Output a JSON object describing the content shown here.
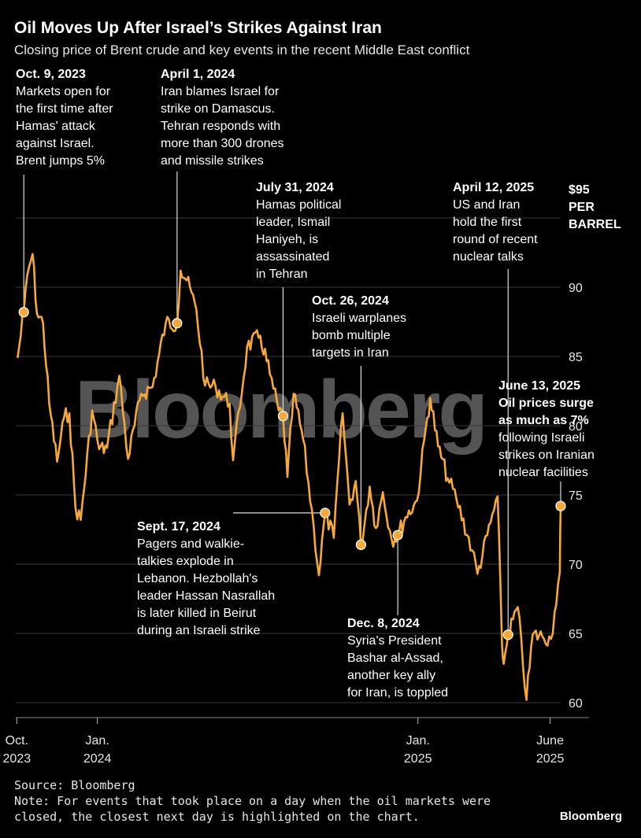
{
  "header": {
    "title": "Oil Moves Up After Israel’s Strikes Against Iran",
    "subtitle": "Closing price of Brent crude and key events in the recent Middle East conflict"
  },
  "watermark": "Bloomberg",
  "footer": {
    "source": "Source: Bloomberg",
    "note_line1": "Note: For events that took place on a day when the oil markets were",
    "note_line2": "closed, the closest next day is highlighted on the chart.",
    "brand": "Bloomberg"
  },
  "colors": {
    "line": "#f4a93a",
    "background": "#000000",
    "grid": "#3a3a3a",
    "marker": "#f4a93a"
  },
  "chart_data": {
    "type": "line",
    "title": "Oil Moves Up After Israel’s Strikes Against Iran",
    "subtitle": "Closing price of Brent crude and key events in the recent Middle East conflict",
    "series": [
      {
        "name": "Brent crude",
        "points": [
          [
            "2023-10-02",
            84.9
          ],
          [
            "2023-10-09",
            88.2
          ],
          [
            "2023-10-13",
            90.9
          ],
          [
            "2023-10-19",
            92.4
          ],
          [
            "2023-10-24",
            88.1
          ],
          [
            "2023-10-31",
            87.4
          ],
          [
            "2023-11-07",
            81.6
          ],
          [
            "2023-11-16",
            77.4
          ],
          [
            "2023-11-24",
            80.6
          ],
          [
            "2023-11-30",
            80.9
          ],
          [
            "2023-12-07",
            74.1
          ],
          [
            "2023-12-13",
            73.2
          ],
          [
            "2023-12-26",
            81.1
          ],
          [
            "2024-01-03",
            78.3
          ],
          [
            "2024-01-12",
            78.4
          ],
          [
            "2024-01-26",
            83.6
          ],
          [
            "2024-02-05",
            77.6
          ],
          [
            "2024-02-20",
            82.3
          ],
          [
            "2024-03-04",
            82.8
          ],
          [
            "2024-03-19",
            87.4
          ],
          [
            "2024-04-01",
            87.4
          ],
          [
            "2024-04-05",
            91.2
          ],
          [
            "2024-04-12",
            90.5
          ],
          [
            "2024-04-23",
            88.4
          ],
          [
            "2024-05-03",
            82.9
          ],
          [
            "2024-05-15",
            82.8
          ],
          [
            "2024-05-31",
            81.6
          ],
          [
            "2024-06-04",
            77.5
          ],
          [
            "2024-06-20",
            85.7
          ],
          [
            "2024-07-05",
            86.5
          ],
          [
            "2024-07-16",
            83.7
          ],
          [
            "2024-07-26",
            81.1
          ],
          [
            "2024-07-31",
            80.7
          ],
          [
            "2024-08-05",
            76.3
          ],
          [
            "2024-08-12",
            82.3
          ],
          [
            "2024-08-23",
            79.0
          ],
          [
            "2024-09-04",
            72.7
          ],
          [
            "2024-09-10",
            69.2
          ],
          [
            "2024-09-17",
            73.7
          ],
          [
            "2024-09-27",
            71.9
          ],
          [
            "2024-10-03",
            77.6
          ],
          [
            "2024-10-07",
            80.9
          ],
          [
            "2024-10-15",
            74.3
          ],
          [
            "2024-10-22",
            76.0
          ],
          [
            "2024-10-28",
            71.4
          ],
          [
            "2024-11-07",
            75.6
          ],
          [
            "2024-11-14",
            72.6
          ],
          [
            "2024-11-22",
            75.2
          ],
          [
            "2024-12-02",
            71.8
          ],
          [
            "2024-12-09",
            72.1
          ],
          [
            "2024-12-18",
            73.4
          ],
          [
            "2024-12-31",
            74.6
          ],
          [
            "2025-01-10",
            79.8
          ],
          [
            "2025-01-15",
            82.0
          ],
          [
            "2025-01-24",
            78.5
          ],
          [
            "2025-02-04",
            76.2
          ],
          [
            "2025-02-14",
            74.7
          ],
          [
            "2025-03-04",
            71.0
          ],
          [
            "2025-03-10",
            69.3
          ],
          [
            "2025-03-25",
            73.0
          ],
          [
            "2025-04-02",
            74.9
          ],
          [
            "2025-04-07",
            64.2
          ],
          [
            "2025-04-09",
            62.8
          ],
          [
            "2025-04-14",
            64.9
          ],
          [
            "2025-04-25",
            66.9
          ],
          [
            "2025-05-05",
            60.2
          ],
          [
            "2025-05-12",
            64.9
          ],
          [
            "2025-05-23",
            64.8
          ],
          [
            "2025-06-02",
            64.6
          ],
          [
            "2025-06-06",
            66.5
          ],
          [
            "2025-06-12",
            69.4
          ],
          [
            "2025-06-13",
            74.2
          ]
        ]
      }
    ],
    "y_axis": {
      "min": 60,
      "max": 95,
      "ticks": [
        60,
        65,
        70,
        75,
        80,
        85,
        90,
        95
      ],
      "unit_label": [
        "$95",
        "PER",
        "BARREL"
      ]
    },
    "x_axis": {
      "range": [
        "2023-09-28",
        "2025-07-10"
      ],
      "ticks": [
        {
          "date": "2023-10-01",
          "line1": "Oct.",
          "line2": "2023"
        },
        {
          "date": "2024-01-01",
          "line1": "Jan.",
          "line2": "2024"
        },
        {
          "date": "2025-01-01",
          "line1": "Jan.",
          "line2": "2025"
        },
        {
          "date": "2025-06-01",
          "line1": "June",
          "line2": "2025"
        }
      ]
    },
    "grid": true,
    "events": [
      {
        "date": "2023-10-09",
        "price": 88.2,
        "label": "Oct. 9, 2023",
        "lines": [
          "Markets open for",
          "the first time after",
          "Hamas' attack",
          "against Israel.",
          "Brent jumps 5%"
        ],
        "bold_lines": 0
      },
      {
        "date": "2024-04-01",
        "price": 87.4,
        "label": "April 1, 2024",
        "lines": [
          "Iran blames Israel for",
          "strike on Damascus.",
          "Tehran responds with",
          "more than 300 drones",
          "and missile strikes"
        ],
        "bold_lines": 0
      },
      {
        "date": "2024-07-31",
        "price": 80.7,
        "label": "July 31, 2024",
        "lines": [
          "Hamas political",
          "leader, Ismail",
          "Haniyeh, is",
          "assassinated",
          "in Tehran"
        ],
        "bold_lines": 0
      },
      {
        "date": "2024-09-17",
        "price": 73.7,
        "label": "Sept. 17, 2024",
        "lines": [
          "Pagers and walkie-",
          "talkies explode in",
          "Lebanon. Hezbollah's",
          "leader Hassan Nasrallah",
          "is later killed in Beirut",
          "during an Israeli strike"
        ],
        "bold_lines": 0
      },
      {
        "date": "2024-10-28",
        "price": 71.4,
        "label": "Oct. 26, 2024",
        "lines": [
          "Israeli warplanes",
          "bomb multiple",
          "targets in Iran"
        ],
        "bold_lines": 0
      },
      {
        "date": "2024-12-09",
        "price": 72.1,
        "label": "Dec. 8, 2024",
        "lines": [
          "Syria's President",
          "Bashar al-Assad,",
          "another key ally",
          "for Iran, is toppled"
        ],
        "bold_lines": 0
      },
      {
        "date": "2025-04-14",
        "price": 64.9,
        "label": "April 12, 2025",
        "lines": [
          "US and Iran",
          "hold the first",
          "round of recent",
          "nuclear talks"
        ],
        "bold_lines": 0
      },
      {
        "date": "2025-06-13",
        "price": 74.2,
        "label": "June 13, 2025",
        "lines": [
          "Oil prices surge",
          "as much as 7%",
          "following Israeli",
          "strikes on Iranian",
          "nuclear facilities"
        ],
        "bold_lines": 2
      }
    ]
  }
}
